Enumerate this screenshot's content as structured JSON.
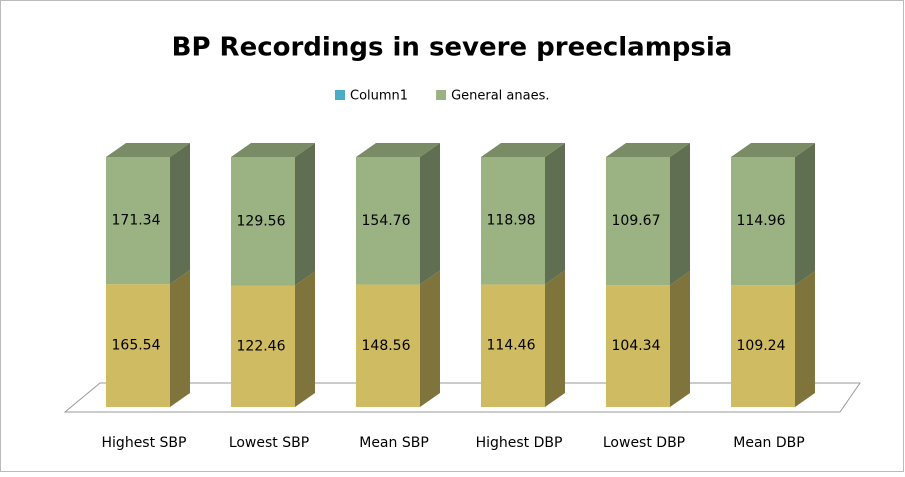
{
  "chart_data": {
    "type": "bar",
    "stacking": "percent",
    "title": "BP Recordings in severe preeclampsia",
    "categories": [
      "Highest SBP",
      "Lowest SBP",
      "Mean SBP",
      "Highest DBP",
      "Lowest DBP",
      "Mean DBP"
    ],
    "series": [
      {
        "name": "Column1",
        "color": "#4bacc6",
        "values": [
          null,
          null,
          null,
          null,
          null,
          null
        ]
      },
      {
        "color": "#cfbb62",
        "values": [
          165.54,
          122.46,
          148.56,
          114.46,
          104.34,
          109.24
        ]
      },
      {
        "name": "General anaes.",
        "color": "#9bb382",
        "values": [
          171.34,
          129.56,
          154.76,
          118.98,
          109.67,
          114.96
        ]
      }
    ],
    "legend": "top"
  }
}
